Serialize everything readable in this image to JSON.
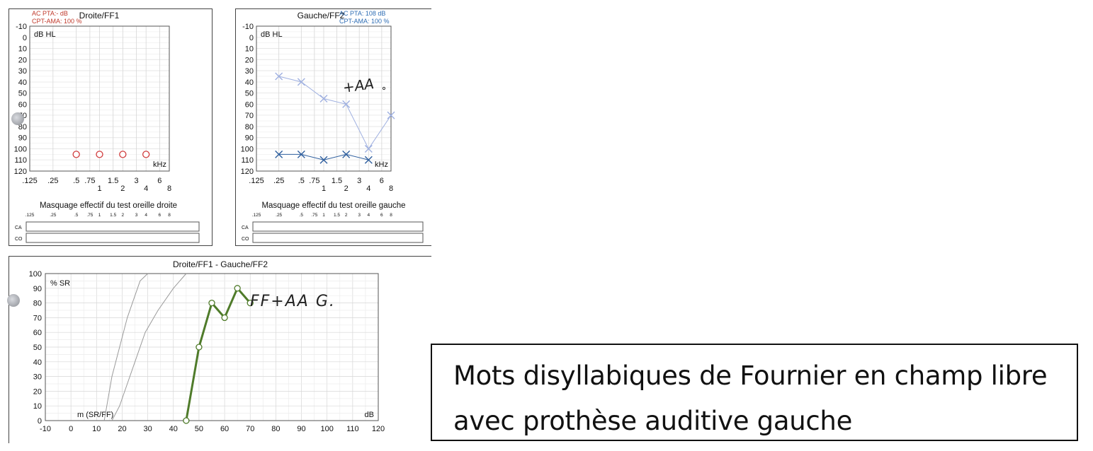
{
  "audiograms": {
    "right": {
      "title": "Droite/FF1",
      "pta_label": "AC PTA:- dB",
      "cpt_label": "CPT-AMA: 100 %",
      "masking_title": "Masquage effectif du test oreille droite",
      "row_labels": [
        "CA",
        "CO"
      ],
      "masking_freq_labels": [
        ".125",
        ".25",
        ".5",
        ".75",
        "1",
        "1.5",
        "2",
        "3",
        "4",
        "6",
        "8"
      ]
    },
    "left": {
      "title": "Gauche/FF2",
      "pta_label": "AC PTA: 108 dB",
      "cpt_label": "CPT-AMA: 100 %",
      "masking_title": "Masquage effectif du test oreille gauche",
      "row_labels": [
        "CA",
        "CO"
      ],
      "masking_freq_labels": [
        ".125",
        ".25",
        ".5",
        ".75",
        "1",
        "1.5",
        "2",
        "3",
        "4",
        "6",
        "8"
      ],
      "handwriting": "+AA"
    }
  },
  "speech": {
    "title": "Droite/FF1 - Gauche/FF2",
    "handwriting": "FF+AA G."
  },
  "note": {
    "line1": "Mots disyllabiques de Fournier en champ libre",
    "line2": "avec prothèse auditive gauche"
  },
  "chart_data": [
    {
      "type": "scatter",
      "title": "Droite/FF1",
      "ylabel": "dB HL",
      "xlabel": "kHz",
      "y_reversed": true,
      "ylim": [
        -10,
        120
      ],
      "y_ticks": [
        -10,
        0,
        10,
        20,
        30,
        40,
        50,
        60,
        70,
        80,
        90,
        100,
        110,
        120
      ],
      "x_tick_labels": [
        ".125",
        ".25",
        ".5",
        ".75",
        "1",
        "1.5",
        "2",
        "3",
        "4",
        "6",
        "8"
      ],
      "x_tick_values": [
        0.125,
        0.25,
        0.5,
        0.75,
        1,
        1.5,
        2,
        3,
        4,
        6,
        8
      ],
      "grid": true,
      "series": [
        {
          "marker": "circle",
          "color": "#d0393a",
          "x": [
            0.5,
            1,
            2,
            4
          ],
          "y": [
            105,
            105,
            105,
            105
          ]
        }
      ]
    },
    {
      "type": "line",
      "title": "Gauche/FF2",
      "ylabel": "dB HL",
      "xlabel": "kHz",
      "y_reversed": true,
      "ylim": [
        -10,
        120
      ],
      "y_ticks": [
        -10,
        0,
        10,
        20,
        30,
        40,
        50,
        60,
        70,
        80,
        90,
        100,
        110,
        120
      ],
      "x_tick_labels": [
        ".125",
        ".25",
        ".5",
        ".75",
        "1",
        "1.5",
        "2",
        "3",
        "4",
        "6",
        "8"
      ],
      "x_tick_values": [
        0.125,
        0.25,
        0.5,
        0.75,
        1,
        1.5,
        2,
        3,
        4,
        6,
        8
      ],
      "grid": true,
      "series": [
        {
          "marker": "x",
          "color": "#9fb0e0",
          "x": [
            0.25,
            0.5,
            1,
            2,
            4,
            8
          ],
          "y": [
            35,
            40,
            55,
            60,
            100,
            70
          ]
        },
        {
          "marker": "x",
          "color": "#2f5f9e",
          "x": [
            0.25,
            0.5,
            1,
            2,
            4
          ],
          "y": [
            105,
            105,
            110,
            105,
            110
          ]
        }
      ]
    },
    {
      "type": "line",
      "title": "Droite/FF1 - Gauche/FF2",
      "ylabel": "% SR",
      "xlabel": "dB",
      "xlim": [
        -10,
        120
      ],
      "ylim": [
        0,
        100
      ],
      "x_ticks": [
        -10,
        0,
        10,
        20,
        30,
        40,
        50,
        60,
        70,
        80,
        90,
        100,
        110,
        120
      ],
      "y_ticks": [
        0,
        10,
        20,
        30,
        40,
        50,
        60,
        70,
        80,
        90,
        100
      ],
      "grid": true,
      "reference_label": "m (SR/FF)",
      "reference_curves": [
        {
          "color": "#9a9a9a",
          "x": [
            13,
            14,
            16,
            19,
            22,
            24,
            27,
            30
          ],
          "y": [
            0,
            10,
            30,
            50,
            70,
            80,
            95,
            100
          ]
        },
        {
          "color": "#9a9a9a",
          "x": [
            16,
            19,
            22,
            25,
            29,
            34,
            40,
            45
          ],
          "y": [
            0,
            10,
            25,
            40,
            60,
            75,
            90,
            100
          ]
        }
      ],
      "series": [
        {
          "marker": "circle",
          "color": "#4f7b2a",
          "x": [
            45,
            50,
            55,
            60,
            65,
            70
          ],
          "y": [
            0,
            50,
            80,
            70,
            90,
            80
          ]
        }
      ]
    }
  ]
}
